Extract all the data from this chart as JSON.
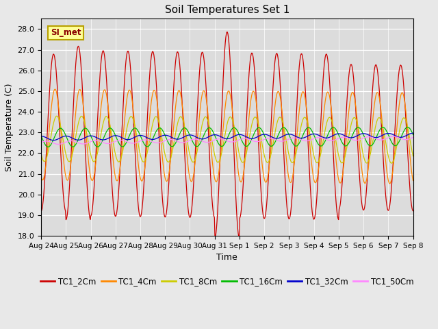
{
  "title": "Soil Temperatures Set 1",
  "xlabel": "Time",
  "ylabel": "Soil Temperature (C)",
  "ylim": [
    18.0,
    28.5
  ],
  "yticks": [
    18.0,
    19.0,
    20.0,
    21.0,
    22.0,
    23.0,
    24.0,
    25.0,
    26.0,
    27.0,
    28.0
  ],
  "annotation_text": "SI_met",
  "bg_color": "#dcdcdc",
  "fig_bg_color": "#e8e8e8",
  "series": [
    {
      "label": "TC1_2Cm",
      "color": "#cc0000",
      "amplitude": 4.0,
      "mean": 23.0,
      "phase_shift": 0.0,
      "trend": -0.018
    },
    {
      "label": "TC1_4Cm",
      "color": "#ff8800",
      "amplitude": 2.2,
      "mean": 22.9,
      "phase_shift": 0.06,
      "trend": -0.012
    },
    {
      "label": "TC1_8Cm",
      "color": "#cccc00",
      "amplitude": 1.1,
      "mean": 22.7,
      "phase_shift": 0.13,
      "trend": -0.006
    },
    {
      "label": "TC1_16Cm",
      "color": "#00bb00",
      "amplitude": 0.45,
      "mean": 22.75,
      "phase_shift": 0.28,
      "trend": 0.004
    },
    {
      "label": "TC1_32Cm",
      "color": "#0000cc",
      "amplitude": 0.1,
      "mean": 22.72,
      "phase_shift": 0.5,
      "trend": 0.01
    },
    {
      "label": "TC1_50Cm",
      "color": "#ff88ff",
      "amplitude": 0.08,
      "mean": 22.5,
      "phase_shift": 0.7,
      "trend": 0.016
    }
  ],
  "xtick_labels": [
    "Aug 24",
    "Aug 25",
    "Aug 26",
    "Aug 27",
    "Aug 28",
    "Aug 29",
    "Aug 30",
    "Aug 31",
    "Sep 1",
    "Sep 2",
    "Sep 3",
    "Sep 4",
    "Sep 5",
    "Sep 6",
    "Sep 7",
    "Sep 8"
  ],
  "n_days": 15,
  "points_per_day": 48,
  "legend_colors": [
    "#cc0000",
    "#ff8800",
    "#cccc00",
    "#00bb00",
    "#0000cc",
    "#ff88ff"
  ],
  "legend_labels": [
    "TC1_2Cm",
    "TC1_4Cm",
    "TC1_8Cm",
    "TC1_16Cm",
    "TC1_32Cm",
    "TC1_50Cm"
  ]
}
